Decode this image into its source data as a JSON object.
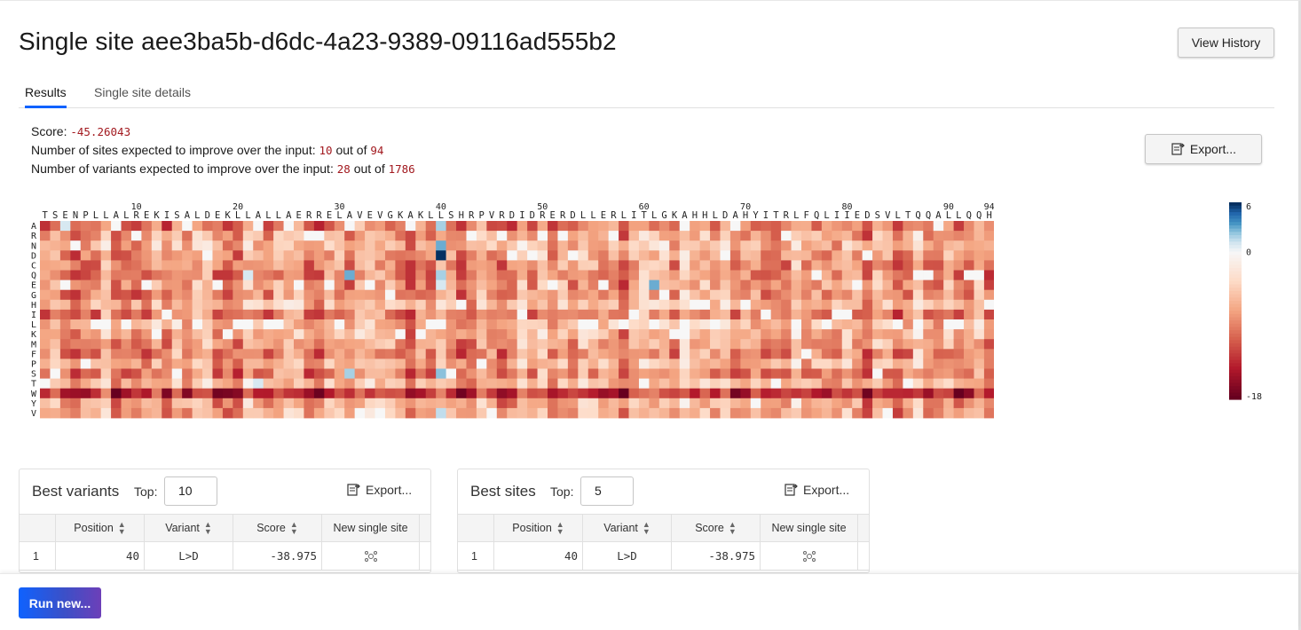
{
  "page": {
    "title": "Single site aee3ba5b-d6dc-4a23-9389-09116ad555b2"
  },
  "header": {
    "view_history_label": "View History"
  },
  "tabs": [
    {
      "label": "Results",
      "active": true
    },
    {
      "label": "Single site details",
      "active": false
    }
  ],
  "stats": {
    "score_label": "Score:",
    "score_value": "-45.26043",
    "sites_label": "Number of sites expected to improve over the input:",
    "sites_value": "10",
    "sites_out_of": "out of",
    "sites_total": "94",
    "variants_label": "Number of variants expected to improve over the input:",
    "variants_value": "28",
    "variants_out_of": "out of",
    "variants_total": "1786"
  },
  "export_label": "Export...",
  "chart_data": {
    "type": "heatmap",
    "sequence": "TSENPLLALREKISALDEKLLALLAERRELAVEVGKAKLLSHRPVRDIDRERDLLERLITLGKAHHLDAHYITRLFQLIIEDSVLTQQALLQQH",
    "x_tick_numbers": [
      "10",
      "20",
      "30",
      "40",
      "50",
      "60",
      "70",
      "80",
      "90",
      "94"
    ],
    "x_tick_positions": [
      10,
      20,
      30,
      40,
      50,
      60,
      70,
      80,
      90,
      94
    ],
    "y_labels": [
      "A",
      "R",
      "N",
      "D",
      "C",
      "Q",
      "E",
      "G",
      "H",
      "I",
      "L",
      "K",
      "M",
      "F",
      "P",
      "S",
      "T",
      "W",
      "Y",
      "V"
    ],
    "colorbar": {
      "min": -18,
      "max": 6,
      "mid": 0,
      "tick_labels": [
        "6",
        "0",
        "-18"
      ],
      "low_color": "#67001f",
      "mid_color": "#f7f7f7",
      "high_color": "#053061"
    },
    "highlights": [
      {
        "pos": 40,
        "aa": "D",
        "value": 6
      },
      {
        "pos": 40,
        "aa": "N",
        "value": 3
      },
      {
        "pos": 40,
        "aa": "Q",
        "value": 2
      },
      {
        "pos": 40,
        "aa": "S",
        "value": 2.5
      },
      {
        "pos": 40,
        "aa": "V",
        "value": 1.5
      },
      {
        "pos": 40,
        "aa": "E",
        "value": 1
      },
      {
        "pos": 40,
        "aa": "A",
        "value": 2
      },
      {
        "pos": 31,
        "aa": "Q",
        "value": 3
      },
      {
        "pos": 31,
        "aa": "S",
        "value": 2
      },
      {
        "pos": 61,
        "aa": "E",
        "value": 3
      },
      {
        "pos": 3,
        "aa": "A",
        "value": 1
      },
      {
        "pos": 21,
        "aa": "Q",
        "value": 1
      },
      {
        "pos": 22,
        "aa": "T",
        "value": 1
      }
    ]
  },
  "best_variants": {
    "title": "Best variants",
    "top_label": "Top:",
    "top_value": "10",
    "export_label": "Export...",
    "columns": [
      "Position",
      "Variant",
      "Score",
      "New single site"
    ],
    "rows": [
      {
        "index": "1",
        "position": "40",
        "variant": "L>D",
        "score": "-38.975"
      }
    ]
  },
  "best_sites": {
    "title": "Best sites",
    "top_label": "Top:",
    "top_value": "5",
    "export_label": "Export...",
    "columns": [
      "Position",
      "Variant",
      "Score",
      "New single site"
    ],
    "rows": [
      {
        "index": "1",
        "position": "40",
        "variant": "L>D",
        "score": "-38.975"
      }
    ]
  },
  "footer": {
    "run_new_label": "Run new..."
  }
}
